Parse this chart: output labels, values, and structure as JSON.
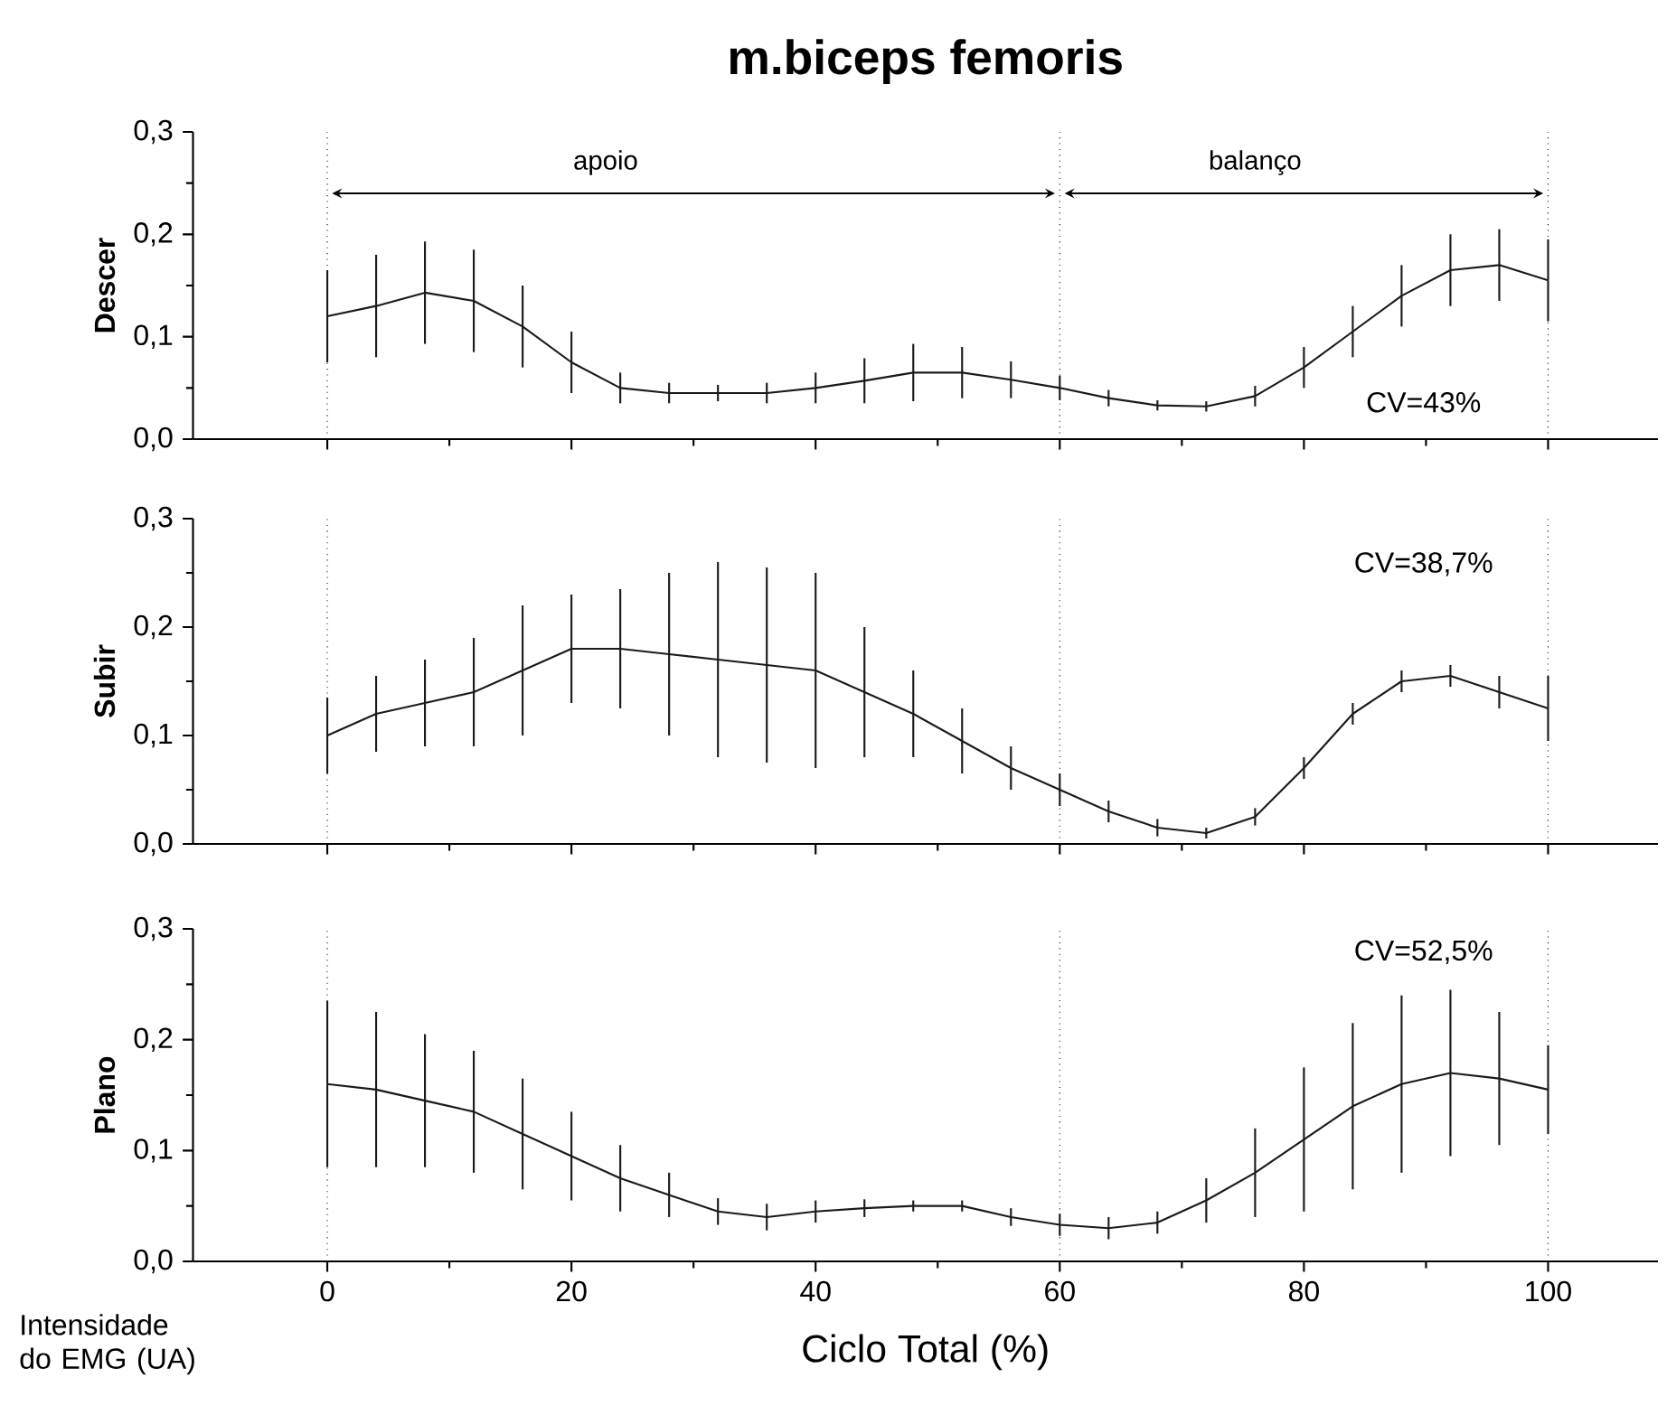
{
  "chart_data": [
    {
      "type": "line",
      "title": "m.biceps femoris",
      "ylabel": "Descer",
      "xlim": [
        -11,
        109
      ],
      "ylim": [
        0,
        0.3
      ],
      "xticks": [
        0,
        20,
        40,
        60,
        80,
        100
      ],
      "yticks": [
        {
          "value": 0,
          "label": "0,0"
        },
        {
          "value": 0.1,
          "label": "0,1"
        },
        {
          "value": 0.2,
          "label": "0,2"
        },
        {
          "value": 0.3,
          "label": "0,3"
        }
      ],
      "tick_labels": "y",
      "grid": false,
      "marker": "none",
      "line_style": "solid",
      "x": [
        0,
        4,
        8,
        12,
        16,
        20,
        24,
        28,
        32,
        36,
        40,
        44,
        48,
        52,
        56,
        60,
        64,
        68,
        72,
        76,
        80,
        84,
        88,
        92,
        96,
        100
      ],
      "series": [
        {
          "color": "#1a1a1a",
          "values": [
            0.12,
            0.13,
            0.143,
            0.135,
            0.11,
            0.075,
            0.05,
            0.045,
            0.045,
            0.045,
            0.05,
            0.057,
            0.065,
            0.065,
            0.058,
            0.05,
            0.04,
            0.033,
            0.032,
            0.042,
            0.07,
            0.105,
            0.14,
            0.165,
            0.17,
            0.155
          ],
          "errors": [
            0.045,
            0.05,
            0.05,
            0.05,
            0.04,
            0.03,
            0.015,
            0.01,
            0.008,
            0.01,
            0.015,
            0.022,
            0.028,
            0.025,
            0.018,
            0.012,
            0.008,
            0.005,
            0.005,
            0.01,
            0.02,
            0.025,
            0.03,
            0.035,
            0.035,
            0.04
          ]
        }
      ],
      "ref_lines": [
        {
          "axis": "x",
          "value": 0,
          "line_style": "dotted"
        },
        {
          "axis": "x",
          "value": 60,
          "line_style": "dotted"
        },
        {
          "axis": "x",
          "value": 100,
          "line_style": "dotted"
        }
      ],
      "annotations": [
        "CV=43%",
        "apoio",
        "balanço"
      ]
    },
    {
      "type": "line",
      "ylabel": "Subir",
      "xlim": [
        -11,
        109
      ],
      "ylim": [
        0,
        0.3
      ],
      "xticks": [
        0,
        20,
        40,
        60,
        80,
        100
      ],
      "yticks": [
        {
          "value": 0,
          "label": "0,0"
        },
        {
          "value": 0.1,
          "label": "0,1"
        },
        {
          "value": 0.2,
          "label": "0,2"
        },
        {
          "value": 0.3,
          "label": "0,3"
        }
      ],
      "tick_labels": "y",
      "grid": false,
      "marker": "none",
      "line_style": "solid",
      "x": [
        0,
        4,
        8,
        12,
        16,
        20,
        24,
        28,
        32,
        36,
        40,
        44,
        48,
        52,
        56,
        60,
        64,
        68,
        72,
        76,
        80,
        84,
        88,
        92,
        96,
        100
      ],
      "series": [
        {
          "color": "#1a1a1a",
          "values": [
            0.1,
            0.12,
            0.13,
            0.14,
            0.16,
            0.18,
            0.18,
            0.175,
            0.17,
            0.165,
            0.16,
            0.14,
            0.12,
            0.095,
            0.07,
            0.05,
            0.03,
            0.015,
            0.01,
            0.025,
            0.07,
            0.12,
            0.15,
            0.155,
            0.14,
            0.125
          ],
          "errors": [
            0.035,
            0.035,
            0.04,
            0.05,
            0.06,
            0.05,
            0.055,
            0.075,
            0.09,
            0.09,
            0.09,
            0.06,
            0.04,
            0.03,
            0.02,
            0.015,
            0.01,
            0.008,
            0.005,
            0.008,
            0.01,
            0.01,
            0.01,
            0.01,
            0.015,
            0.03
          ]
        }
      ],
      "ref_lines": [
        {
          "axis": "x",
          "value": 0,
          "line_style": "dotted"
        },
        {
          "axis": "x",
          "value": 60,
          "line_style": "dotted"
        },
        {
          "axis": "x",
          "value": 100,
          "line_style": "dotted"
        }
      ],
      "annotations": [
        "CV=38,7%"
      ]
    },
    {
      "type": "line",
      "ylabel": "Plano",
      "xlabel": "Ciclo Total (%)",
      "xlim": [
        -11,
        109
      ],
      "ylim": [
        0,
        0.3
      ],
      "xticks": [
        0,
        20,
        40,
        60,
        80,
        100
      ],
      "yticks": [
        {
          "value": 0,
          "label": "0,0"
        },
        {
          "value": 0.1,
          "label": "0,1"
        },
        {
          "value": 0.2,
          "label": "0,2"
        },
        {
          "value": 0.3,
          "label": "0,3"
        }
      ],
      "grid": false,
      "marker": "none",
      "line_style": "solid",
      "x": [
        0,
        4,
        8,
        12,
        16,
        20,
        24,
        28,
        32,
        36,
        40,
        44,
        48,
        52,
        56,
        60,
        64,
        68,
        72,
        76,
        80,
        84,
        88,
        92,
        96,
        100
      ],
      "series": [
        {
          "color": "#1a1a1a",
          "values": [
            0.16,
            0.155,
            0.145,
            0.135,
            0.115,
            0.095,
            0.075,
            0.06,
            0.045,
            0.04,
            0.045,
            0.048,
            0.05,
            0.05,
            0.04,
            0.033,
            0.03,
            0.035,
            0.055,
            0.08,
            0.11,
            0.14,
            0.16,
            0.17,
            0.165,
            0.155
          ],
          "errors": [
            0.075,
            0.07,
            0.06,
            0.055,
            0.05,
            0.04,
            0.03,
            0.02,
            0.012,
            0.012,
            0.01,
            0.008,
            0.005,
            0.005,
            0.008,
            0.01,
            0.01,
            0.01,
            0.02,
            0.04,
            0.065,
            0.075,
            0.08,
            0.075,
            0.06,
            0.04
          ]
        }
      ],
      "ref_lines": [
        {
          "axis": "x",
          "value": 0,
          "line_style": "dotted"
        },
        {
          "axis": "x",
          "value": 60,
          "line_style": "dotted"
        },
        {
          "axis": "x",
          "value": 100,
          "line_style": "dotted"
        }
      ],
      "annotations": [
        "CV=52,5%",
        "Intensidade do EMG (UA)"
      ]
    }
  ]
}
